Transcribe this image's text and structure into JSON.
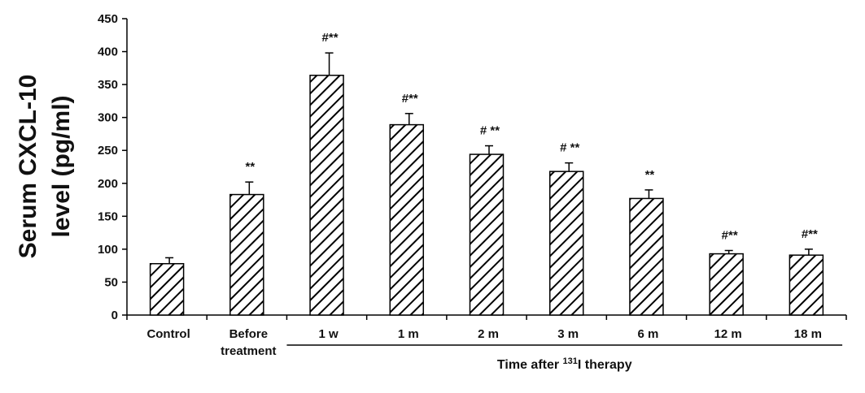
{
  "chart_data": {
    "type": "bar",
    "title": "",
    "ylabel_lines": [
      "Serum CXCL-10",
      "level (pg/ml)"
    ],
    "ylim": [
      0,
      450
    ],
    "yticks": [
      0,
      50,
      100,
      150,
      200,
      250,
      300,
      350,
      400,
      450
    ],
    "categories": [
      [
        "Control"
      ],
      [
        "Before",
        "treatment"
      ],
      [
        "1 w"
      ],
      [
        "1 m"
      ],
      [
        "2 m"
      ],
      [
        "3 m"
      ],
      [
        "6 m"
      ],
      [
        "12 m"
      ],
      [
        "18 m"
      ]
    ],
    "values": [
      78,
      183,
      364,
      289,
      244,
      218,
      177,
      93,
      91
    ],
    "errors": [
      9,
      19,
      34,
      17,
      13,
      13,
      13,
      5,
      9
    ],
    "significance": [
      "",
      "**",
      "#**",
      "#**",
      "# **",
      "# **",
      "**",
      "#**",
      "#**"
    ],
    "group": {
      "label_prefix": "Time after ",
      "label_sup": "131",
      "label_suffix": "I therapy",
      "from_index": 2,
      "to_index": 8
    },
    "bar_fill": "hatched",
    "grid": false
  }
}
